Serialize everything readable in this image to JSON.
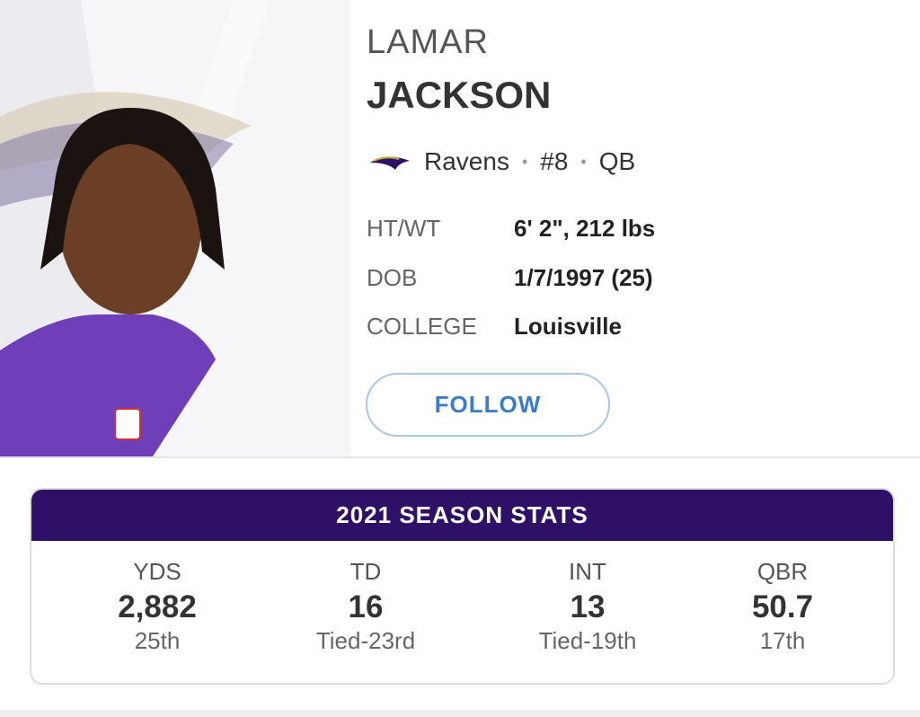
{
  "player": {
    "first_name": "LAMAR",
    "last_name": "JACKSON",
    "team": "Ravens",
    "number": "#8",
    "position": "QB",
    "info": [
      {
        "label": "HT/WT",
        "value": "6' 2\", 212 lbs"
      },
      {
        "label": "DOB",
        "value": "1/7/1997 (25)"
      },
      {
        "label": "COLLEGE",
        "value": "Louisville"
      }
    ],
    "follow": "FOLLOW"
  },
  "stats": {
    "title": "2021 SEASON STATS",
    "items": [
      {
        "label": "YDS",
        "value": "2,882",
        "rank": "25th"
      },
      {
        "label": "TD",
        "value": "16",
        "rank": "Tied-23rd"
      },
      {
        "label": "INT",
        "value": "13",
        "rank": "Tied-19th"
      },
      {
        "label": "QBR",
        "value": "50.7",
        "rank": "17th"
      }
    ]
  }
}
